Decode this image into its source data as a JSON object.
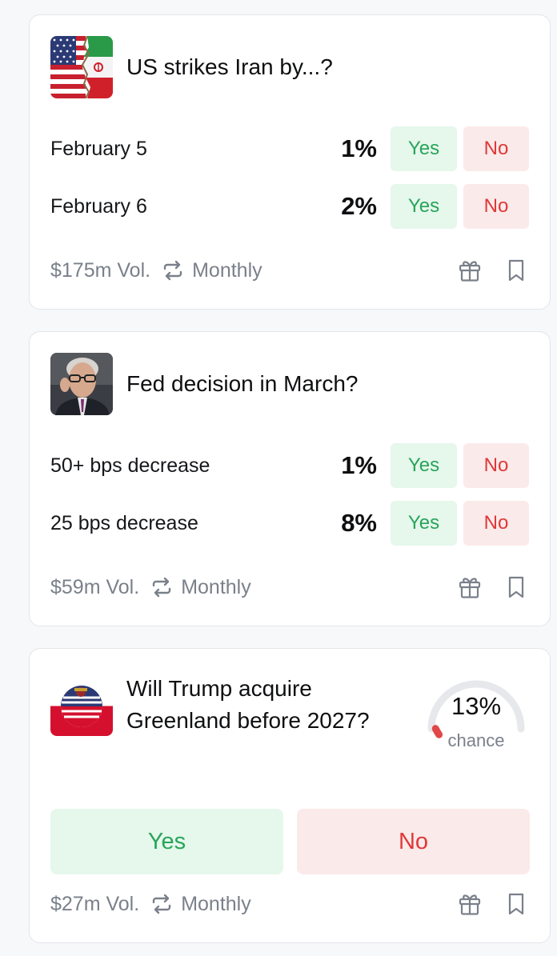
{
  "markets": [
    {
      "title": "US strikes Iran by...?",
      "image": "us-iran-flags",
      "outcomes": [
        {
          "label": "February 5",
          "percent": "1%",
          "yes": "Yes",
          "no": "No"
        },
        {
          "label": "February 6",
          "percent": "2%",
          "yes": "Yes",
          "no": "No"
        }
      ],
      "volume": "$175m Vol.",
      "frequency": "Monthly"
    },
    {
      "title": "Fed decision in March?",
      "image": "fed-chair-portrait",
      "outcomes": [
        {
          "label": "50+ bps decrease",
          "percent": "1%",
          "yes": "Yes",
          "no": "No"
        },
        {
          "label": "25 bps decrease",
          "percent": "8%",
          "yes": "Yes",
          "no": "No"
        }
      ],
      "volume": "$59m Vol.",
      "frequency": "Monthly"
    },
    {
      "title_line1": "Will Trump acquire",
      "title_line2": "Greenland before 2027?",
      "image": "us-greenland-flags",
      "chance_percent": "13%",
      "chance_value": 0.13,
      "chance_label": "chance",
      "yes": "Yes",
      "no": "No",
      "volume": "$27m Vol.",
      "frequency": "Monthly"
    }
  ],
  "icons": {
    "repeat": "repeat-icon",
    "gift": "gift-icon",
    "bookmark": "bookmark-icon"
  },
  "colors": {
    "yes_text": "#27a55a",
    "yes_bg": "#e6f7ec",
    "no_text": "#e03838",
    "no_bg": "#fbeaea",
    "muted": "#7a808a",
    "gauge_track": "#e6e8eb",
    "gauge_fill": "#e04848"
  }
}
